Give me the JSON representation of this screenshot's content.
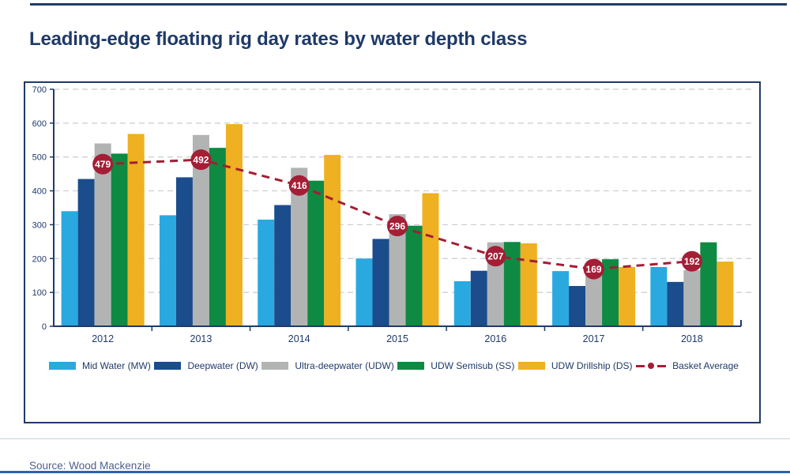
{
  "page": {
    "title": "Leading-edge floating rig day rates by water depth class",
    "source": "Source: Wood Mackenzie"
  },
  "colors": {
    "title": "#1F3A68",
    "axis": "#1F3A68",
    "axis_text": "#1F3A68",
    "box_border": "#1F3A68",
    "top_rule": "#1F3A68",
    "gridline": "#C9CCD1",
    "mid_water": "#2AA9E0",
    "deepwater": "#1B4C8C",
    "ultra_deepwater": "#B2B4B4",
    "udw_semisub": "#0E8A42",
    "udw_drillship": "#EFB021",
    "basket": "#A41E35",
    "marker_text": "#FFFFFF",
    "legend_text": "#1F3A68",
    "divider": "#C9D2DF",
    "source_text": "#4C5F93",
    "bottom_rule": "#2E63AC"
  },
  "chart_data": {
    "type": "bar",
    "title": "Leading-edge floating rig day rates by water depth class",
    "categories": [
      "2012",
      "2013",
      "2014",
      "2015",
      "2016",
      "2017",
      "2018"
    ],
    "series": [
      {
        "name": "Mid Water (MW)",
        "color_key": "mid_water",
        "values": [
          340,
          328,
          315,
          200,
          133,
          163,
          175
        ]
      },
      {
        "name": "Deepwater (DW)",
        "color_key": "deepwater",
        "values": [
          435,
          440,
          358,
          258,
          164,
          119,
          131
        ]
      },
      {
        "name": "Ultra-deepwater (UDW)",
        "color_key": "ultra_deepwater",
        "values": [
          540,
          565,
          468,
          331,
          248,
          170,
          166
        ]
      },
      {
        "name": "UDW Semisub (SS)",
        "color_key": "udw_semisub",
        "values": [
          510,
          527,
          430,
          297,
          249,
          198,
          248
        ]
      },
      {
        "name": "UDW Drillship (DS)",
        "color_key": "udw_drillship",
        "values": [
          568,
          597,
          506,
          393,
          245,
          175,
          191
        ]
      }
    ],
    "line_series": {
      "name": "Basket Average",
      "color_key": "basket",
      "values": [
        479,
        492,
        416,
        296,
        207,
        169,
        192
      ],
      "labeled": true,
      "style": "dashed"
    },
    "xlabel": "",
    "ylabel": "",
    "ylim": [
      0,
      700
    ],
    "ytick_step": 100,
    "grid": "dashed-horizontal",
    "legend_position": "bottom"
  }
}
